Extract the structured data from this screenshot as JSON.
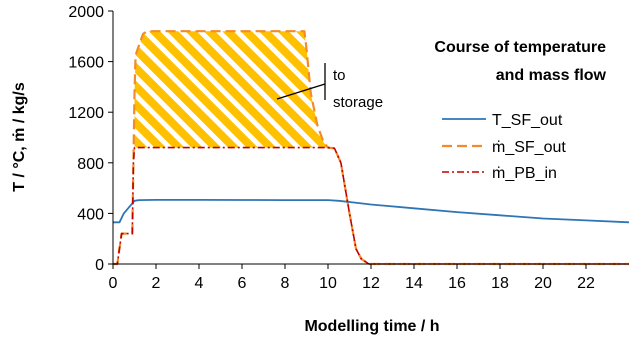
{
  "chart_data": {
    "type": "line",
    "title_lines": [
      "Course of temperature",
      "and mass flow"
    ],
    "xlabel": "Modelling time / h",
    "ylabel": "T / °C,  ṁ / kg/s",
    "xlim": [
      0,
      24
    ],
    "ylim": [
      0,
      2000
    ],
    "xticks": [
      0,
      2,
      4,
      6,
      8,
      10,
      12,
      14,
      16,
      18,
      20,
      22
    ],
    "yticks": [
      0,
      400,
      800,
      1200,
      1600,
      2000
    ],
    "grid": false,
    "legend_position": "right",
    "series": [
      {
        "name": "T_SF_out",
        "color": "#2E75B6",
        "style": "solid",
        "x": [
          0,
          0.3,
          0.5,
          1.0,
          1.2,
          2,
          4,
          6,
          8,
          9,
          10,
          10.5,
          11,
          12,
          14,
          16,
          18,
          20,
          22,
          24
        ],
        "y": [
          330,
          330,
          400,
          500,
          505,
          507,
          507,
          506,
          505,
          505,
          505,
          500,
          490,
          470,
          440,
          410,
          385,
          360,
          345,
          330
        ]
      },
      {
        "name": "ṁ_SF_out",
        "color": "#F28C28",
        "style": "dashed",
        "x": [
          0,
          0.2,
          0.4,
          0.9,
          0.95,
          1.0,
          1.05,
          1.15,
          1.4,
          1.6,
          8.9,
          9.0,
          9.2,
          9.5,
          9.8,
          10.0,
          10.3,
          10.6,
          11.0,
          11.3,
          11.55,
          11.9,
          24
        ],
        "y": [
          0,
          0,
          240,
          240,
          800,
          1350,
          1650,
          1700,
          1820,
          1840,
          1840,
          1700,
          1350,
          1100,
          960,
          920,
          915,
          800,
          400,
          120,
          40,
          0,
          0
        ]
      },
      {
        "name": "ṁ_PB_in",
        "color": "#C00000",
        "style": "dashdot",
        "x": [
          0,
          0.2,
          0.4,
          0.9,
          0.95,
          1.0,
          1.1,
          1.2,
          10.0,
          10.3,
          10.6,
          11.0,
          11.3,
          11.55,
          11.9,
          24
        ],
        "y": [
          0,
          0,
          240,
          240,
          800,
          920,
          920,
          920,
          920,
          915,
          800,
          400,
          120,
          40,
          0,
          0
        ]
      }
    ],
    "shaded_region": {
      "label_lines": [
        "to",
        "storage"
      ],
      "fill": "#FFC000",
      "hatch_color": "#FFFFFF",
      "description_series": [
        "ṁ_SF_out",
        "ṁ_PB_in"
      ]
    }
  }
}
